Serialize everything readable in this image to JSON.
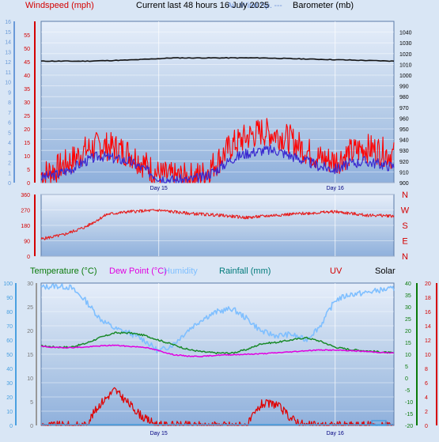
{
  "chart_data": [
    {
      "type": "line",
      "title": "Current last 48 hours 16 July 2025",
      "legend": [
        {
          "label": "Windspeed (mph)",
          "color": "#d40000"
        },
        {
          "label": "Av. Wind Sp. ---",
          "color": "#6a8fd8"
        },
        {
          "label": "Barometer (mb)",
          "color": "#000000"
        }
      ],
      "left_axis_1": {
        "ticks": [
          0,
          1,
          2,
          3,
          4,
          5,
          6,
          7,
          8,
          9,
          10,
          11,
          12,
          13,
          14,
          15,
          16
        ],
        "color": "#6a9ad8"
      },
      "left_axis_2": {
        "ticks": [
          0,
          5,
          10,
          15,
          20,
          25,
          30,
          35,
          40,
          45,
          50,
          55
        ],
        "color": "#d40000"
      },
      "right_axis": {
        "ticks": [
          900,
          910,
          920,
          930,
          940,
          950,
          960,
          970,
          980,
          990,
          1000,
          1010,
          1020,
          1030,
          1040
        ]
      },
      "x_labels": [
        "Day 15",
        "Day 16"
      ],
      "x_range": [
        0,
        48
      ],
      "series": [
        {
          "name": "Windspeed (mph)",
          "color": "#ff0000",
          "hours": [
            0,
            2,
            4,
            6,
            8,
            10,
            12,
            14,
            16,
            18,
            20,
            22,
            24,
            26,
            28,
            30,
            32,
            34,
            36,
            38,
            40,
            42,
            44,
            46,
            48
          ],
          "values": [
            3,
            5,
            8,
            12,
            14,
            13,
            11,
            7,
            3,
            2,
            2,
            3,
            8,
            14,
            17,
            19,
            18,
            16,
            12,
            9,
            8,
            11,
            13,
            12,
            10
          ]
        },
        {
          "name": "Av. Wind Sp.",
          "color": "#3a2ad0",
          "hours": [
            0,
            2,
            4,
            6,
            8,
            10,
            12,
            14,
            16,
            18,
            20,
            22,
            24,
            26,
            28,
            30,
            32,
            34,
            36,
            38,
            40,
            42,
            44,
            46,
            48
          ],
          "values": [
            2,
            3,
            5,
            8,
            10,
            9,
            8,
            5,
            2,
            1,
            1,
            2,
            5,
            9,
            11,
            12,
            12,
            10,
            8,
            6,
            5,
            7,
            8,
            7,
            6
          ]
        },
        {
          "name": "Barometer (mb)",
          "color": "#111111",
          "hours": [
            0,
            6,
            12,
            18,
            24,
            30,
            36,
            42,
            48
          ],
          "values": [
            1013,
            1013,
            1014,
            1016,
            1016,
            1016,
            1015,
            1014,
            1013
          ]
        }
      ]
    },
    {
      "type": "line",
      "name": "Wind direction",
      "left_ticks": [
        0,
        90,
        180,
        270,
        360
      ],
      "right_labels": [
        "N",
        "W",
        "S",
        "E",
        "N"
      ],
      "x_range": [
        0,
        48
      ],
      "series": [
        {
          "name": "Wind direction",
          "color": "#e52020",
          "hours": [
            0,
            3,
            6,
            9,
            12,
            16,
            20,
            24,
            28,
            32,
            36,
            40,
            44,
            48
          ],
          "values": [
            100,
            125,
            170,
            245,
            260,
            268,
            250,
            240,
            225,
            240,
            250,
            260,
            240,
            235
          ]
        }
      ]
    },
    {
      "type": "line",
      "legend": [
        {
          "label": "Temperature (°C)",
          "color": "#0a7a0a"
        },
        {
          "label": "Dew Point (°C)",
          "color": "#e000e0"
        },
        {
          "label": "Humidity",
          "color": "#7fbfff"
        },
        {
          "label": "Rainfall (mm)",
          "color": "#007a7a"
        },
        {
          "label": "UV",
          "color": "#d40000"
        },
        {
          "label": "Solar",
          "color": "#000000"
        }
      ],
      "left_axis_1": {
        "ticks": [
          0,
          10,
          20,
          30,
          40,
          50,
          60,
          70,
          80,
          90,
          100
        ],
        "color": "#4aa0e0"
      },
      "left_axis_2": {
        "ticks": [
          0,
          5,
          10,
          15,
          20,
          25,
          30
        ],
        "color": "#777777"
      },
      "right_axis_1": {
        "ticks": [
          -20,
          -15,
          -10,
          -5,
          0,
          5,
          10,
          15,
          20,
          25,
          30,
          35,
          40
        ],
        "color": "#0a7a0a"
      },
      "right_axis_2": {
        "ticks": [
          0,
          2,
          4,
          6,
          8,
          10,
          12,
          14,
          16,
          18,
          20
        ],
        "color": "#d40000"
      },
      "x_labels": [
        "Day 15",
        "Day 16"
      ],
      "x_range": [
        0,
        48
      ],
      "series": [
        {
          "name": "Humidity",
          "color": "#7fbfff",
          "hours": [
            0,
            2,
            4,
            6,
            8,
            10,
            12,
            14,
            16,
            18,
            20,
            22,
            24,
            26,
            28,
            30,
            32,
            34,
            36,
            38,
            40,
            42,
            44,
            46,
            48
          ],
          "values": [
            97,
            98,
            97,
            88,
            75,
            68,
            65,
            60,
            52,
            57,
            67,
            75,
            80,
            82,
            75,
            66,
            63,
            64,
            60,
            70,
            88,
            92,
            93,
            95,
            96
          ]
        },
        {
          "name": "Temperature (°C)",
          "color": "#1a8a2a",
          "hours": [
            0,
            2,
            4,
            6,
            8,
            10,
            12,
            14,
            16,
            18,
            20,
            22,
            24,
            26,
            28,
            30,
            32,
            34,
            36,
            38,
            40,
            42,
            44,
            46,
            48
          ],
          "values": [
            13.5,
            13,
            13,
            14.5,
            17,
            19,
            19,
            18,
            16,
            14,
            12,
            11,
            10.5,
            10.5,
            12,
            14.5,
            15,
            16,
            17,
            15.5,
            13,
            12,
            11.5,
            11,
            10.5
          ]
        },
        {
          "name": "Dew Point (°C)",
          "color": "#e000e0",
          "hours": [
            0,
            2,
            4,
            6,
            8,
            10,
            12,
            14,
            16,
            18,
            20,
            22,
            24,
            26,
            28,
            30,
            32,
            34,
            36,
            38,
            40,
            42,
            44,
            46,
            48
          ],
          "values": [
            13.3,
            12.8,
            12.8,
            13,
            13.5,
            13.8,
            13.3,
            13,
            11.5,
            9.8,
            9.2,
            9.1,
            9.6,
            9.8,
            10,
            10.2,
            10.6,
            11,
            11.5,
            11.8,
            11.7,
            11.5,
            11.2,
            10.8,
            10.5
          ]
        },
        {
          "name": "Solar",
          "color": "#ff9a00",
          "hours": [
            0,
            2,
            4,
            6,
            8,
            10,
            12,
            14,
            16,
            18,
            20,
            22,
            24,
            26,
            28,
            30,
            32,
            34,
            36,
            38,
            40,
            42,
            44,
            46,
            48
          ],
          "values": [
            0,
            0,
            0,
            1,
            8,
            17,
            14,
            5,
            1,
            0,
            0,
            0,
            0,
            0,
            0,
            9,
            7,
            4,
            1,
            0,
            0,
            0,
            0,
            0,
            0
          ]
        },
        {
          "name": "UV",
          "color": "#e00000",
          "hours": [
            0,
            2,
            4,
            6,
            8,
            10,
            12,
            14,
            16,
            18,
            20,
            22,
            24,
            26,
            28,
            30,
            32,
            34,
            36,
            38,
            40,
            42,
            44,
            46,
            48
          ],
          "values": [
            0,
            0,
            0,
            0,
            3,
            5,
            3,
            1,
            0,
            0,
            0,
            0,
            0,
            0,
            0,
            3,
            3,
            1,
            0,
            0,
            0,
            0,
            0,
            0,
            0
          ]
        },
        {
          "name": "Rainfall (mm)",
          "color": "#4aa0e0",
          "hours": [
            0,
            45,
            48
          ],
          "values": [
            0,
            0,
            0
          ]
        }
      ]
    }
  ]
}
